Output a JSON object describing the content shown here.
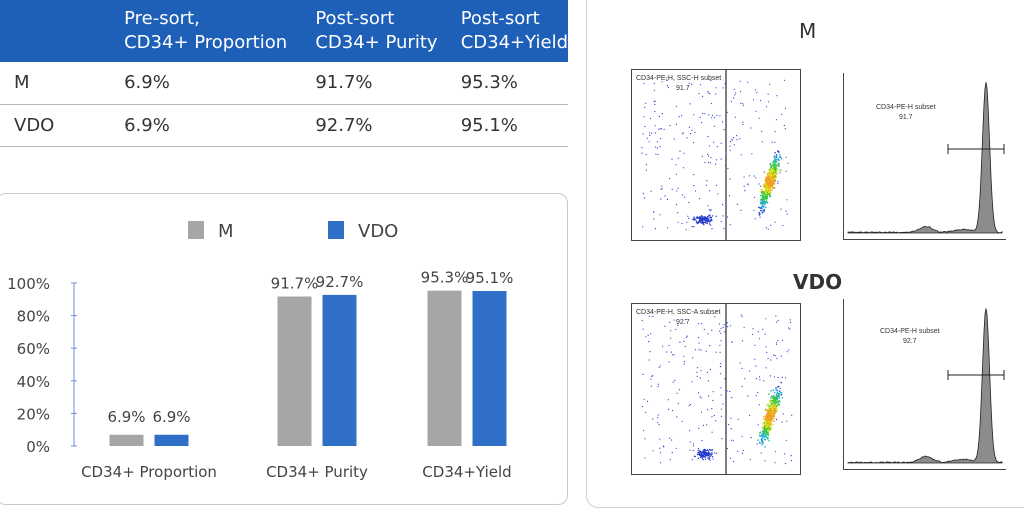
{
  "table": {
    "headers": [
      {
        "line1": "",
        "line2": ""
      },
      {
        "line1": "Pre-sort,",
        "line2": "CD34+ Proportion"
      },
      {
        "line1": "Post-sort",
        "line2": "CD34+ Purity"
      },
      {
        "line1": "Post-sort",
        "line2": "CD34+Yield"
      }
    ],
    "rows": [
      {
        "name": "M",
        "proportion": "6.9%",
        "purity": "91.7%",
        "yield": "95.3%"
      },
      {
        "name": "VDO",
        "proportion": "6.9%",
        "purity": "92.7%",
        "yield": "95.1%"
      }
    ]
  },
  "colors": {
    "header_bg": "#1e5fb8",
    "series_m": "#a6a6a6",
    "series_vdo": "#2f6fc8",
    "axis": "#6f8fd0"
  },
  "chart_data": {
    "type": "bar",
    "title": "",
    "categories": [
      "CD34+ Proportion",
      "CD34+ Purity",
      "CD34+Yield"
    ],
    "series": [
      {
        "name": "M",
        "values": [
          6.9,
          91.7,
          95.3
        ],
        "labels": [
          "6.9%",
          "91.7%",
          "95.3%"
        ]
      },
      {
        "name": "VDO",
        "values": [
          6.9,
          92.7,
          95.1
        ],
        "labels": [
          "6.9%",
          "92.7%",
          "95.1%"
        ]
      }
    ],
    "ylim": [
      0,
      100
    ],
    "yticks": [
      "0%",
      "20%",
      "40%",
      "60%",
      "80%",
      "100%"
    ],
    "legend_position": "top-center"
  },
  "flow": {
    "groups": [
      {
        "title": "M",
        "scatter_label": "CD34-PE-H, SSC-H subset",
        "scatter_value": "91.7",
        "hist_label": "CD34-PE-H subset",
        "hist_value": "91.7"
      },
      {
        "title": "VDO",
        "scatter_label": "CD34-PE-H, SSC-A subset",
        "scatter_value": "92.7",
        "hist_label": "CD34-PE-H subset",
        "hist_value": "92.7"
      }
    ]
  }
}
